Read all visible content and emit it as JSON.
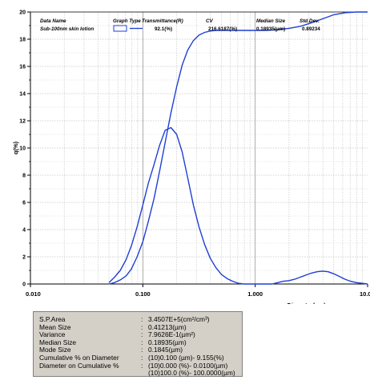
{
  "chart_data": {
    "type": "line",
    "ylabel": "q(%)",
    "xlabel": "Diameter(µm)",
    "x_scale": "log",
    "xlim": [
      0.01,
      10.0
    ],
    "ylim": [
      0,
      20
    ],
    "grid": true,
    "x_tick_labels": [
      "0.010",
      "0.100",
      "1.000",
      "10.0"
    ],
    "x_tick_values": [
      0.01,
      0.1,
      1.0,
      10.0
    ],
    "y_tick_labels": [
      "0",
      "2",
      "4",
      "6",
      "8",
      "10",
      "12",
      "14",
      "16",
      "18",
      "20"
    ],
    "y_tick_values": [
      0,
      2,
      4,
      6,
      8,
      10,
      12,
      14,
      16,
      18,
      20
    ],
    "legend": {
      "placement": "top",
      "headers": [
        "Data Name",
        "Graph Type",
        "Transmittance(R)",
        "CV",
        "Median Size",
        "Std.Dev."
      ],
      "row": {
        "data_name": "Sub-100nm skin lotion",
        "transmittance": "92.1(%)",
        "cv": "216.6187(%)",
        "median_size": "0.18935(µm)",
        "std_dev": "0.89234"
      },
      "line_color": "#1f3fd6"
    },
    "series": [
      {
        "name": "q(%)",
        "kind": "frequency",
        "color": "#1f3fd6",
        "x": [
          0.05,
          0.056,
          0.063,
          0.071,
          0.079,
          0.089,
          0.1,
          0.112,
          0.126,
          0.141,
          0.158,
          0.178,
          0.2,
          0.224,
          0.251,
          0.282,
          0.316,
          0.355,
          0.398,
          0.447,
          0.501,
          0.562,
          0.631,
          0.708,
          0.794,
          0.891,
          1.0,
          1.122,
          1.259,
          1.413,
          1.585,
          1.778,
          1.995,
          2.239,
          2.512,
          2.818,
          3.162,
          3.548,
          3.981,
          4.467,
          5.012,
          5.623,
          6.31,
          7.079,
          7.943,
          8.913,
          10.0
        ],
        "y": [
          0.1,
          0.5,
          1.0,
          1.8,
          2.8,
          4.2,
          5.8,
          7.4,
          8.8,
          10.2,
          11.3,
          11.5,
          11.0,
          9.7,
          7.8,
          5.8,
          4.2,
          2.9,
          1.9,
          1.2,
          0.7,
          0.4,
          0.2,
          0.05,
          0.0,
          0.0,
          0.0,
          0.0,
          0.0,
          0.0,
          0.1,
          0.2,
          0.25,
          0.35,
          0.5,
          0.65,
          0.8,
          0.9,
          0.95,
          0.9,
          0.75,
          0.55,
          0.35,
          0.2,
          0.1,
          0.05,
          0.0
        ]
      },
      {
        "name": "Cumulative %",
        "kind": "cumulative",
        "color": "#1f3fd6",
        "scaled_to_axis": "q(%) axis (0-20 corresponds to 0-100%)",
        "x": [
          0.05,
          0.056,
          0.063,
          0.071,
          0.079,
          0.089,
          0.1,
          0.112,
          0.126,
          0.141,
          0.158,
          0.178,
          0.2,
          0.224,
          0.251,
          0.282,
          0.316,
          0.355,
          0.398,
          0.447,
          0.501,
          0.562,
          0.631,
          0.708,
          0.794,
          0.891,
          1.0,
          1.259,
          1.585,
          1.995,
          2.512,
          3.162,
          3.981,
          5.012,
          6.31,
          7.943,
          10.0
        ],
        "y": [
          0.0,
          0.1,
          0.3,
          0.6,
          1.1,
          2.0,
          3.1,
          4.6,
          6.3,
          8.3,
          10.4,
          12.6,
          14.5,
          16.1,
          17.2,
          17.9,
          18.3,
          18.5,
          18.6,
          18.65,
          18.65,
          18.65,
          18.65,
          18.65,
          18.65,
          18.65,
          18.65,
          18.65,
          18.7,
          18.8,
          18.95,
          19.2,
          19.5,
          19.8,
          19.95,
          20.0,
          20.0
        ]
      }
    ]
  },
  "stats": [
    {
      "label": "S.P.Area",
      "value": "3.4507E+5(cm²/cm³)"
    },
    {
      "label": "Mean Size",
      "value": " 0.41213(µm)"
    },
    {
      "label": "Variance",
      "value": "7.9626E-1(µm²)"
    },
    {
      "label": "Median Size",
      "value": " 0.18935(µm)"
    },
    {
      "label": "Mode Size",
      "value": " 0.1845(µm)"
    },
    {
      "label": "Cumulative % on Diameter",
      "value": "(10)0.100 (µm)-   9.155(%)"
    },
    {
      "label": "Diameter on Cumulative %",
      "value": "(10)0.000 (%)-   0.0100(µm)"
    },
    {
      "label": "",
      "value": "(10)100.0 (%)- 100.0000(µm)"
    }
  ]
}
